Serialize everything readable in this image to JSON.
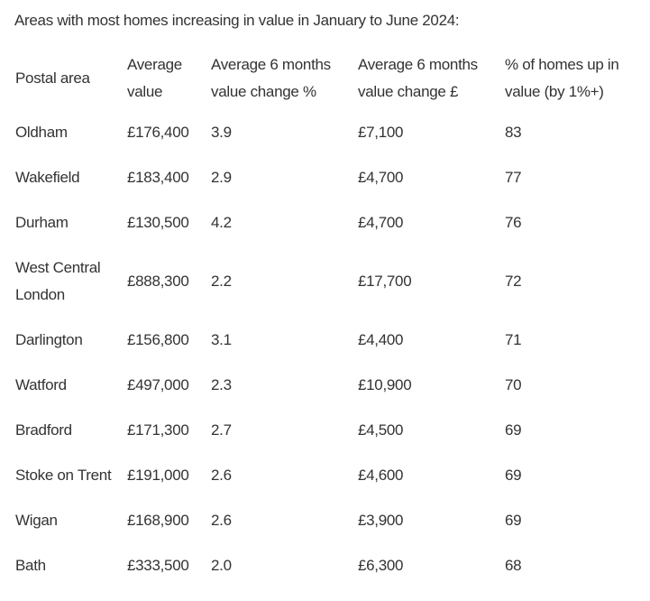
{
  "title": "Areas with most homes increasing in value in January to June 2024:",
  "table": {
    "headers": [
      "Postal area",
      "Average value",
      "Average 6 months value change %",
      "Average 6 months value change £",
      "% of homes up in value (by 1%+)"
    ],
    "rows": [
      [
        "Oldham",
        "£176,400",
        "3.9",
        "£7,100",
        "83"
      ],
      [
        "Wakefield",
        "£183,400",
        "2.9",
        "£4,700",
        "77"
      ],
      [
        "Durham",
        "£130,500",
        "4.2",
        "£4,700",
        "76"
      ],
      [
        "West Central London",
        "£888,300",
        "2.2",
        "£17,700",
        "72"
      ],
      [
        "Darlington",
        "£156,800",
        "3.1",
        "£4,400",
        "71"
      ],
      [
        "Watford",
        "£497,000",
        "2.3",
        "£10,900",
        "70"
      ],
      [
        "Bradford",
        "£171,300",
        "2.7",
        "£4,500",
        "69"
      ],
      [
        "Stoke on Trent",
        "£191,000",
        "2.6",
        "£4,600",
        "69"
      ],
      [
        "Wigan",
        "£168,900",
        "2.6",
        "£3,900",
        "69"
      ],
      [
        "Bath",
        "£333,500",
        "2.0",
        "£6,300",
        "68"
      ]
    ]
  },
  "colors": {
    "text": "#333333",
    "background": "#ffffff"
  }
}
